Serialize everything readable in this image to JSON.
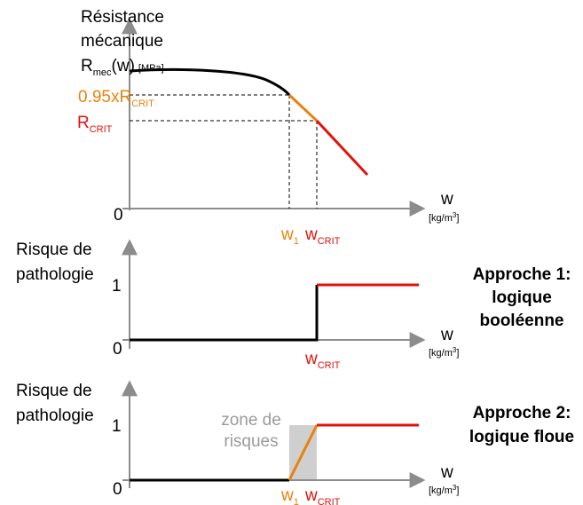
{
  "colors": {
    "black": "#000000",
    "orange": "#E8820C",
    "red": "#E3120B",
    "axis": "#8C8C8C",
    "risk_zone": "#CFCFCF",
    "zone_text": "#9A9A9A"
  },
  "panel1": {
    "ylabel_line1": "Résistance",
    "ylabel_line2": "mécanique",
    "ylabel_R": "R",
    "ylabel_R_sub": "mec",
    "ylabel_w": "(w)",
    "ylabel_unit": "[MPa]",
    "y_tick_095": "0.95xR",
    "y_tick_095_sub": "CRIT",
    "y_tick_crit": "R",
    "y_tick_crit_sub": "CRIT",
    "origin": "0",
    "x_label": "w",
    "x_unit": "[kg/m",
    "x_unit_sup": "3",
    "x_unit_end": "]",
    "x_tick_w1": "w",
    "x_tick_w1_sub": "1",
    "x_tick_wcrit": "w",
    "x_tick_wcrit_sub": "CRIT"
  },
  "panel2": {
    "ylabel_line1": "Risque de",
    "ylabel_line2": "pathologie",
    "y_tick_1": "1",
    "origin": "0",
    "x_label": "w",
    "x_unit": "[kg/m",
    "x_unit_sup": "3",
    "x_unit_end": "]",
    "x_tick_wcrit": "w",
    "x_tick_wcrit_sub": "CRIT",
    "approach_line1": "Approche 1:",
    "approach_line2": "logique",
    "approach_line3": "booléenne"
  },
  "panel3": {
    "ylabel_line1": "Risque de",
    "ylabel_line2": "pathologie",
    "y_tick_1": "1",
    "origin": "0",
    "x_label": "w",
    "x_unit": "[kg/m",
    "x_unit_sup": "3",
    "x_unit_end": "]",
    "x_tick_w1": "w",
    "x_tick_w1_sub": "1",
    "x_tick_wcrit": "w",
    "x_tick_wcrit_sub": "CRIT",
    "zone_line1": "zone de",
    "zone_line2": "risques",
    "approach_line1": "Approche 2:",
    "approach_line2": "logique floue"
  }
}
